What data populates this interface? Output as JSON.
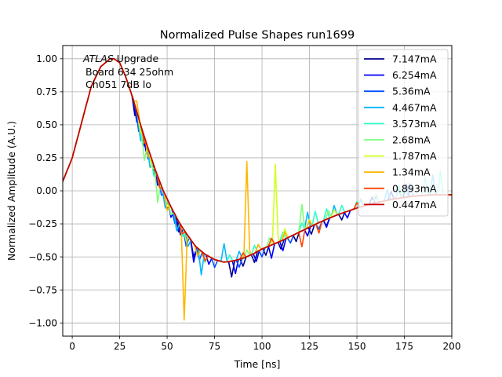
{
  "chart_data": {
    "type": "line",
    "title": "Normalized Pulse Shapes run1699",
    "xlabel": "Time [ns]",
    "ylabel": "Normalized Amplitude (A.U.)",
    "xlim": [
      -5,
      200
    ],
    "ylim": [
      -1.1,
      1.1
    ],
    "xticks": [
      0,
      25,
      50,
      75,
      100,
      125,
      150,
      175,
      200
    ],
    "xtick_labels": [
      "0",
      "25",
      "50",
      "75",
      "100",
      "125",
      "150",
      "175",
      "200"
    ],
    "yticks": [
      -1.0,
      -0.75,
      -0.5,
      -0.25,
      0.0,
      0.25,
      0.5,
      0.75,
      1.0
    ],
    "ytick_labels": [
      "−1.00",
      "−0.75",
      "−0.50",
      "−0.25",
      "0.00",
      "0.25",
      "0.50",
      "0.75",
      "1.00"
    ],
    "grid": true,
    "legend_position": "top-right",
    "annotation": {
      "italic": "ATLAS",
      "line1_rest": " Upgrade",
      "line2": "Board 634 25ohm",
      "line3": "Ch051 7dB lo"
    },
    "base_curve": {
      "x": [
        -5,
        0,
        5,
        10,
        15,
        20,
        22,
        25,
        28,
        32,
        36,
        40,
        44,
        48,
        52,
        56,
        60,
        65,
        70,
        75,
        80,
        85,
        90,
        95,
        100,
        110,
        120,
        130,
        140,
        150,
        160,
        170,
        180,
        190,
        200
      ],
      "y": [
        0.07,
        0.25,
        0.52,
        0.79,
        0.94,
        1.0,
        1.0,
        0.97,
        0.87,
        0.7,
        0.5,
        0.32,
        0.15,
        0.0,
        -0.12,
        -0.23,
        -0.32,
        -0.42,
        -0.48,
        -0.52,
        -0.54,
        -0.53,
        -0.51,
        -0.48,
        -0.44,
        -0.38,
        -0.31,
        -0.24,
        -0.18,
        -0.13,
        -0.09,
        -0.06,
        -0.04,
        -0.03,
        -0.03
      ]
    },
    "series": [
      {
        "name": "7.147mA",
        "color": "#00008f",
        "spikes": [
          [
            33,
            -0.08
          ],
          [
            38,
            -0.07
          ],
          [
            44,
            -0.06
          ],
          [
            50,
            -0.08
          ],
          [
            56,
            -0.08
          ],
          [
            64,
            -0.1
          ],
          [
            70,
            -0.06
          ],
          [
            84,
            -0.12
          ],
          [
            90,
            -0.06
          ],
          [
            96,
            -0.07
          ],
          [
            102,
            -0.06
          ],
          [
            110,
            -0.06
          ],
          [
            118,
            -0.06
          ],
          [
            126,
            -0.06
          ],
          [
            134,
            -0.05
          ],
          [
            142,
            -0.05
          ]
        ]
      },
      {
        "name": "6.254mA",
        "color": "#0000f2",
        "spikes": [
          [
            34,
            -0.08
          ],
          [
            39,
            -0.08
          ],
          [
            45,
            -0.07
          ],
          [
            52,
            -0.08
          ],
          [
            57,
            -0.08
          ],
          [
            64,
            -0.14
          ],
          [
            72,
            -0.06
          ],
          [
            86,
            -0.1
          ],
          [
            97,
            -0.07
          ],
          [
            105,
            -0.1
          ],
          [
            111,
            -0.08
          ],
          [
            124,
            -0.06
          ],
          [
            134,
            -0.06
          ],
          [
            145,
            -0.05
          ],
          [
            158,
            0.05
          ],
          [
            168,
            0.06
          ],
          [
            176,
            0.1
          ]
        ]
      },
      {
        "name": "5.36mA",
        "color": "#0050ff",
        "spikes": [
          [
            35,
            -0.1
          ],
          [
            40,
            -0.08
          ],
          [
            47,
            -0.07
          ],
          [
            54,
            -0.07
          ],
          [
            60,
            -0.1
          ],
          [
            67,
            -0.08
          ],
          [
            75,
            -0.06
          ],
          [
            88,
            -0.06
          ],
          [
            100,
            -0.06
          ],
          [
            115,
            -0.05
          ],
          [
            130,
            -0.05
          ],
          [
            160,
            0.05
          ],
          [
            172,
            0.07
          ]
        ]
      },
      {
        "name": "4.467mA",
        "color": "#00b8ff",
        "spikes": [
          [
            36,
            -0.12
          ],
          [
            41,
            -0.1
          ],
          [
            49,
            -0.1
          ],
          [
            55,
            -0.1
          ],
          [
            61,
            -0.08
          ],
          [
            68,
            -0.18
          ],
          [
            80,
            0.14
          ],
          [
            88,
            0.06
          ],
          [
            98,
            0.05
          ],
          [
            112,
            0.06
          ],
          [
            124,
            0.12
          ],
          [
            138,
            0.08
          ],
          [
            152,
            0.06
          ],
          [
            166,
            0.08
          ],
          [
            178,
            0.1
          ],
          [
            190,
            0.15
          ]
        ]
      },
      {
        "name": "3.573mA",
        "color": "#2cffca",
        "spikes": [
          [
            37,
            -0.1
          ],
          [
            43,
            -0.08
          ],
          [
            50,
            -0.06
          ],
          [
            58,
            -0.07
          ],
          [
            66,
            -0.06
          ],
          [
            83,
            0.05
          ],
          [
            96,
            0.06
          ],
          [
            111,
            0.06
          ],
          [
            121,
            0.06
          ],
          [
            128,
            0.1
          ],
          [
            134,
            0.08
          ],
          [
            142,
            0.06
          ],
          [
            150,
            0.05
          ],
          [
            172,
            0.1
          ],
          [
            186,
            0.14
          ],
          [
            194,
            0.18
          ]
        ]
      },
      {
        "name": "2.68mA",
        "color": "#7dff7a",
        "spikes": [
          [
            38,
            -0.18
          ],
          [
            45,
            -0.2
          ],
          [
            52,
            -0.06
          ],
          [
            60,
            -0.06
          ],
          [
            70,
            -0.06
          ],
          [
            92,
            0.05
          ],
          [
            104,
            0.06
          ],
          [
            121,
            0.2
          ],
          [
            135,
            0.06
          ],
          [
            160,
            0.07
          ],
          [
            175,
            0.08
          ]
        ]
      },
      {
        "name": "1.787mA",
        "color": "#d3ff22",
        "spikes": [
          [
            36,
            -0.06
          ],
          [
            42,
            -0.06
          ],
          [
            50,
            -0.06
          ],
          [
            107,
            0.6
          ],
          [
            112,
            0.08
          ],
          [
            125,
            0.06
          ],
          [
            138,
            0.05
          ]
        ]
      },
      {
        "name": "1.34mA",
        "color": "#ffb700",
        "spikes": [
          [
            34,
            0.08
          ],
          [
            40,
            -0.06
          ],
          [
            50,
            -0.09
          ],
          [
            59,
            -0.68
          ],
          [
            66,
            -0.06
          ],
          [
            92,
            0.72
          ],
          [
            98,
            0.05
          ],
          [
            112,
            0.05
          ],
          [
            125,
            0.05
          ]
        ]
      },
      {
        "name": "0.893mA",
        "color": "#ff4400",
        "spikes": [
          [
            38,
            -0.04
          ],
          [
            46,
            -0.05
          ],
          [
            58,
            -0.05
          ],
          [
            70,
            -0.05
          ],
          [
            90,
            0.04
          ],
          [
            105,
            0.05
          ],
          [
            121,
            -0.12
          ],
          [
            130,
            -0.08
          ],
          [
            150,
            0.04
          ]
        ]
      },
      {
        "name": "0.447mA",
        "color": "#c60000",
        "spikes": []
      }
    ]
  }
}
